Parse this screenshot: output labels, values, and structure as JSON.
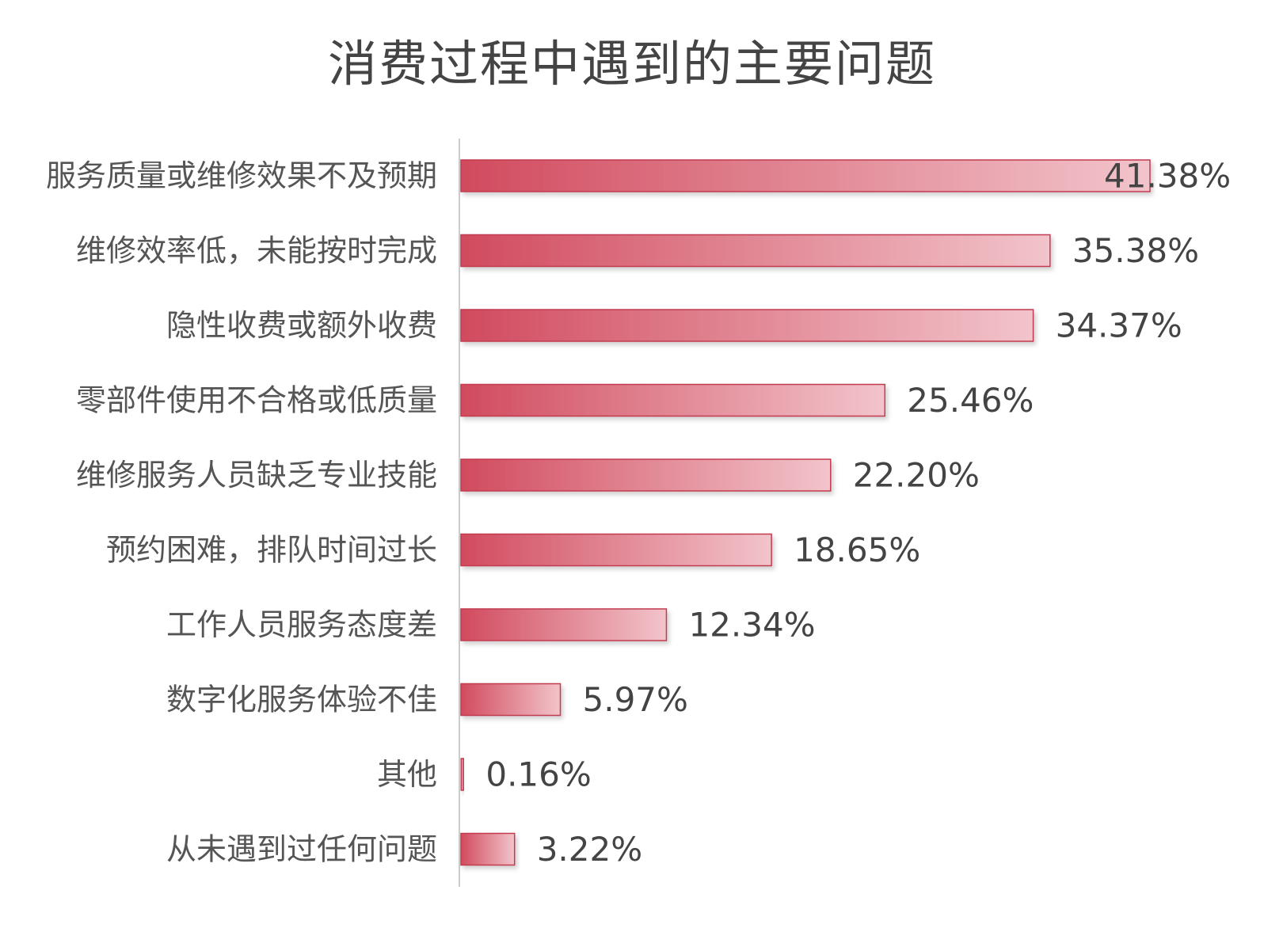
{
  "chart_data": {
    "type": "bar",
    "orientation": "horizontal",
    "title": "消费过程中遇到的主要问题",
    "categories": [
      "服务质量或维修效果不及预期",
      "维修效率低，未能按时完成",
      "隐性收费或额外收费",
      "零部件使用不合格或低质量",
      "维修服务人员缺乏专业技能",
      "预约困难，排队时间过长",
      "工作人员服务态度差",
      "数字化服务体验不佳",
      "其他",
      "从未遇到过任何问题"
    ],
    "values": [
      41.38,
      35.38,
      34.37,
      25.46,
      22.2,
      18.65,
      12.34,
      5.97,
      0.16,
      3.22
    ],
    "value_labels": [
      "41.38%",
      "35.38%",
      "34.37%",
      "25.46%",
      "22.20%",
      "18.65%",
      "12.34%",
      "5.97%",
      "0.16%",
      "3.22%"
    ],
    "xlabel": "",
    "ylabel": "",
    "xlim": [
      0,
      41.38
    ],
    "grid": false,
    "colors": {
      "bar_dark": "#d14b5e",
      "bar_light": "#f2c4cb",
      "bar_stroke": "#c23a4f",
      "axis": "#cccccc"
    }
  }
}
